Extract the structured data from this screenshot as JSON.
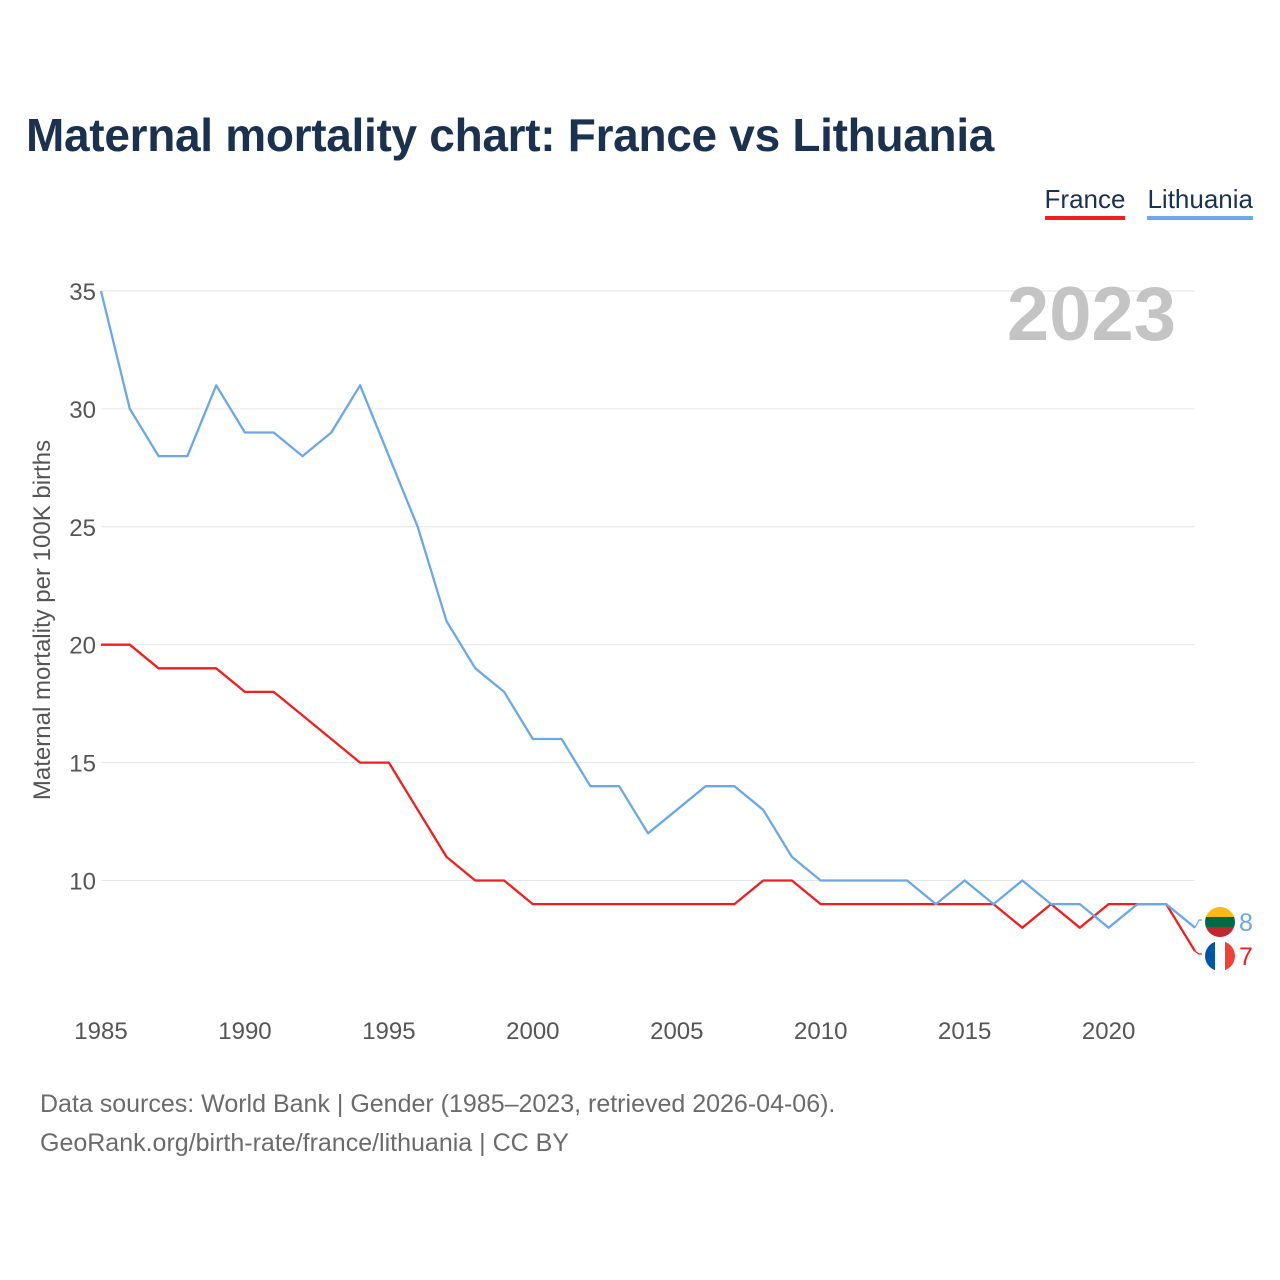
{
  "title": "Maternal mortality chart: France vs Lithuania",
  "legend": {
    "france": "France",
    "lithuania": "Lithuania"
  },
  "year_label": "2023",
  "footer": {
    "line1": "Data sources: World Bank | Gender (1985–2023, retrieved 2026-04-06).",
    "line2": "GeoRank.org/birth-rate/france/lithuania | CC BY"
  },
  "colors": {
    "france": "#f21d1d",
    "lithuania": "#6aa8e8",
    "grid": "#e6e6e6"
  },
  "chart_data": {
    "type": "line",
    "title": "Maternal mortality chart: France vs Lithuania",
    "xlabel": "",
    "ylabel": "Maternal mortality per 100K births",
    "xlim": [
      1985,
      2023
    ],
    "ylim": [
      5,
      35
    ],
    "x_ticks": [
      1985,
      1990,
      1995,
      2000,
      2005,
      2010,
      2015,
      2020
    ],
    "y_ticks": [
      10,
      15,
      20,
      25,
      30,
      35
    ],
    "x": [
      1985,
      1986,
      1987,
      1988,
      1989,
      1990,
      1991,
      1992,
      1993,
      1994,
      1995,
      1996,
      1997,
      1998,
      1999,
      2000,
      2001,
      2002,
      2003,
      2004,
      2005,
      2006,
      2007,
      2008,
      2009,
      2010,
      2011,
      2012,
      2013,
      2014,
      2015,
      2016,
      2017,
      2018,
      2019,
      2020,
      2021,
      2022,
      2023
    ],
    "series": [
      {
        "name": "France",
        "color": "#f21d1d",
        "end_label": "7",
        "values": [
          20,
          20,
          19,
          19,
          19,
          18,
          18,
          17,
          16,
          15,
          15,
          13,
          11,
          10,
          10,
          9,
          9,
          9,
          9,
          9,
          9,
          9,
          9,
          10,
          10,
          9,
          9,
          9,
          9,
          9,
          9,
          9,
          8,
          9,
          8,
          9,
          9,
          9,
          7
        ]
      },
      {
        "name": "Lithuania",
        "color": "#6aa8e8",
        "end_label": "8",
        "values": [
          35,
          30,
          28,
          28,
          31,
          29,
          29,
          28,
          29,
          31,
          28,
          25,
          21,
          19,
          18,
          16,
          16,
          14,
          14,
          12,
          13,
          14,
          14,
          13,
          11,
          10,
          10,
          10,
          10,
          9,
          10,
          9,
          10,
          9,
          9,
          8,
          9,
          9,
          8
        ]
      }
    ],
    "grid": true,
    "legend_position": "top-right"
  }
}
